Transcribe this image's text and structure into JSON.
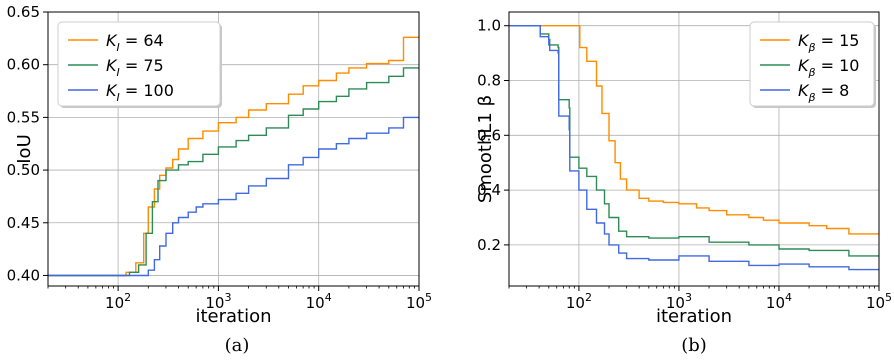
{
  "chart_data": [
    {
      "type": "line",
      "panel_label": "(a)",
      "xlabel": "iteration",
      "ylabel": "IoU",
      "x_scale": "log",
      "xlim": [
        20,
        100000
      ],
      "ylim": [
        0.39,
        0.65
      ],
      "xticks": [
        {
          "value": 100,
          "base": "10",
          "exp": "2"
        },
        {
          "value": 1000,
          "base": "10",
          "exp": "3"
        },
        {
          "value": 10000,
          "base": "10",
          "exp": "4"
        },
        {
          "value": 100000,
          "base": "10",
          "exp": "5"
        }
      ],
      "yticks": [
        "0.40",
        "0.45",
        "0.50",
        "0.55",
        "0.60",
        "0.65"
      ],
      "grid": true,
      "legend_position": "top-left",
      "series": [
        {
          "sym": "K",
          "sub": "I",
          "rhs": " = 64",
          "color": "#ff8c00",
          "x": [
            20,
            100,
            120,
            150,
            180,
            200,
            230,
            260,
            300,
            350,
            400,
            500,
            700,
            1000,
            1500,
            2000,
            3000,
            5000,
            7000,
            10000,
            15000,
            20000,
            30000,
            50000,
            70000,
            100000
          ],
          "y": [
            0.4,
            0.4,
            0.403,
            0.412,
            0.44,
            0.465,
            0.482,
            0.495,
            0.502,
            0.51,
            0.52,
            0.53,
            0.537,
            0.545,
            0.55,
            0.557,
            0.563,
            0.572,
            0.58,
            0.585,
            0.592,
            0.597,
            0.601,
            0.604,
            0.626,
            0.626
          ]
        },
        {
          "sym": "K",
          "sub": "I",
          "rhs": " = 75",
          "color": "#2e8b57",
          "x": [
            20,
            110,
            130,
            160,
            190,
            220,
            250,
            300,
            400,
            500,
            700,
            1000,
            1500,
            2000,
            3000,
            5000,
            7000,
            10000,
            15000,
            20000,
            30000,
            50000,
            70000,
            100000
          ],
          "y": [
            0.4,
            0.4,
            0.403,
            0.41,
            0.44,
            0.47,
            0.49,
            0.5,
            0.505,
            0.508,
            0.515,
            0.522,
            0.528,
            0.533,
            0.54,
            0.552,
            0.558,
            0.565,
            0.57,
            0.577,
            0.583,
            0.589,
            0.597,
            0.597
          ]
        },
        {
          "sym": "K",
          "sub": "I",
          "rhs": " = 100",
          "color": "#4169e1",
          "x": [
            20,
            170,
            200,
            230,
            260,
            300,
            350,
            400,
            500,
            600,
            700,
            1000,
            1500,
            2000,
            3000,
            5000,
            7000,
            10000,
            15000,
            20000,
            30000,
            50000,
            70000,
            100000
          ],
          "y": [
            0.4,
            0.4,
            0.405,
            0.415,
            0.428,
            0.44,
            0.45,
            0.455,
            0.46,
            0.465,
            0.468,
            0.472,
            0.478,
            0.485,
            0.492,
            0.505,
            0.512,
            0.52,
            0.525,
            0.53,
            0.535,
            0.54,
            0.55,
            0.55
          ]
        }
      ]
    },
    {
      "type": "line",
      "panel_label": "(b)",
      "xlabel": "iteration",
      "ylabel": "SmoothL1 β",
      "x_scale": "log",
      "xlim": [
        20,
        100000
      ],
      "ylim": [
        0.05,
        1.05
      ],
      "xticks": [
        {
          "value": 100,
          "base": "10",
          "exp": "2"
        },
        {
          "value": 1000,
          "base": "10",
          "exp": "3"
        },
        {
          "value": 10000,
          "base": "10",
          "exp": "4"
        },
        {
          "value": 100000,
          "base": "10",
          "exp": "5"
        }
      ],
      "yticks": [
        "0.2",
        "0.4",
        "0.6",
        "0.8",
        "1.0"
      ],
      "grid": true,
      "legend_position": "top-right",
      "series": [
        {
          "sym": "K",
          "sub": "β",
          "rhs": " = 15",
          "color": "#ff8c00",
          "x": [
            20,
            98,
            102,
            120,
            150,
            170,
            200,
            230,
            260,
            300,
            400,
            500,
            700,
            1000,
            1500,
            2000,
            3000,
            5000,
            7000,
            10000,
            20000,
            30000,
            50000,
            100000
          ],
          "y": [
            1.0,
            1.0,
            0.92,
            0.87,
            0.78,
            0.68,
            0.58,
            0.5,
            0.44,
            0.4,
            0.37,
            0.36,
            0.355,
            0.35,
            0.335,
            0.325,
            0.31,
            0.3,
            0.29,
            0.28,
            0.27,
            0.26,
            0.24,
            0.24
          ]
        },
        {
          "sym": "K",
          "sub": "β",
          "rhs": " = 10",
          "color": "#2e8b57",
          "x": [
            20,
            40,
            41,
            50,
            51,
            62,
            63,
            80,
            81,
            100,
            120,
            150,
            180,
            200,
            250,
            300,
            500,
            1000,
            2000,
            5000,
            10000,
            20000,
            50000,
            100000
          ],
          "y": [
            1.0,
            1.0,
            0.97,
            0.95,
            0.93,
            0.92,
            0.73,
            0.7,
            0.52,
            0.48,
            0.45,
            0.4,
            0.35,
            0.3,
            0.25,
            0.23,
            0.225,
            0.23,
            0.21,
            0.2,
            0.185,
            0.18,
            0.16,
            0.16
          ]
        },
        {
          "sym": "K",
          "sub": "β",
          "rhs": " = 8",
          "color": "#4169e1",
          "x": [
            20,
            40,
            41,
            50,
            51,
            62,
            63,
            80,
            81,
            100,
            120,
            150,
            180,
            200,
            250,
            300,
            500,
            1000,
            2000,
            5000,
            10000,
            20000,
            50000,
            100000
          ],
          "y": [
            1.0,
            1.0,
            0.96,
            0.93,
            0.91,
            0.9,
            0.67,
            0.62,
            0.47,
            0.4,
            0.33,
            0.28,
            0.24,
            0.2,
            0.17,
            0.15,
            0.145,
            0.16,
            0.14,
            0.125,
            0.13,
            0.12,
            0.11,
            0.11
          ]
        }
      ]
    }
  ]
}
